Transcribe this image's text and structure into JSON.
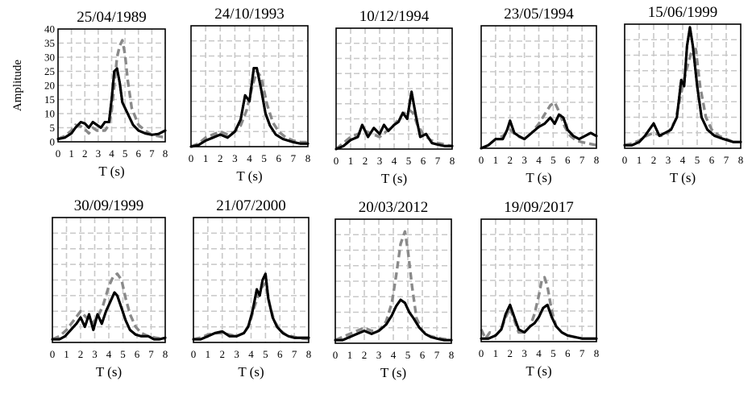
{
  "chart_data": [
    {
      "type": "line",
      "title": "25/04/1989",
      "xlabel": "T (s)",
      "ylabel": "Amplitude",
      "xlim": [
        0,
        8
      ],
      "ylim": [
        0,
        40
      ],
      "x_ticks": [
        "0",
        "1",
        "2",
        "3",
        "4",
        "5",
        "6",
        "7",
        "8"
      ],
      "y_ticks": [
        "0",
        "5",
        "10",
        "15",
        "20",
        "25",
        "30",
        "35",
        "40"
      ],
      "grid": true,
      "series": [
        {
          "style": "solid-black",
          "x": [
            0,
            0.5,
            1,
            1.3,
            1.7,
            2,
            2.3,
            2.6,
            2.9,
            3.2,
            3.5,
            3.8,
            4.0,
            4.2,
            4.4,
            4.6,
            4.8,
            5.0,
            5.3,
            5.6,
            6.0,
            6.5,
            7.0,
            7.5,
            8.0
          ],
          "y": [
            1,
            1.5,
            3,
            5,
            7,
            6.5,
            5,
            7,
            6,
            5,
            7,
            7,
            15,
            25,
            26,
            21,
            14,
            12,
            9,
            6,
            4,
            3,
            2.5,
            2.8,
            4
          ]
        },
        {
          "style": "dashed-gray",
          "x": [
            0,
            0.5,
            1,
            1.3,
            1.7,
            2,
            2.3,
            2.6,
            2.9,
            3.2,
            3.5,
            3.8,
            4.0,
            4.2,
            4.4,
            4.6,
            4.8,
            5.0,
            5.2,
            5.5,
            6.0,
            6.5,
            7.0,
            7.5,
            8.0
          ],
          "y": [
            1,
            2,
            4,
            6,
            5.5,
            4.5,
            3,
            5,
            4,
            4,
            4,
            6,
            11,
            20,
            30,
            34,
            36,
            31,
            22,
            12,
            6,
            4,
            2.5,
            2,
            1.5
          ]
        }
      ]
    },
    {
      "type": "line",
      "title": "24/10/1993",
      "xlabel": "T (s)",
      "xlim": [
        0,
        8
      ],
      "x_ticks": [
        "0",
        "1",
        "2",
        "3",
        "4",
        "5",
        "6",
        "7",
        "8"
      ],
      "grid": true,
      "series": [
        {
          "style": "solid-black",
          "x": [
            0,
            0.5,
            1,
            1.5,
            2,
            2.5,
            3,
            3.4,
            3.7,
            4.0,
            4.3,
            4.5,
            4.8,
            5.1,
            5.4,
            5.8,
            6.3,
            7.0,
            7.5,
            8.0
          ],
          "y": [
            0,
            0.5,
            2,
            3,
            4,
            3,
            5,
            9,
            17,
            15,
            26,
            26,
            19,
            11,
            7,
            4,
            2.5,
            1.5,
            1,
            1
          ]
        },
        {
          "style": "dashed-gray",
          "x": [
            0,
            0.5,
            1,
            1.5,
            2,
            2.5,
            3,
            3.4,
            3.8,
            4.2,
            4.5,
            4.8,
            5.2,
            5.6,
            6.0,
            6.5,
            7.0,
            7.5,
            8.0
          ],
          "y": [
            0,
            1,
            3,
            4,
            5,
            4,
            5,
            7,
            12,
            20,
            25,
            23,
            14,
            8,
            5,
            3,
            2,
            1.5,
            1.5
          ]
        }
      ]
    },
    {
      "type": "line",
      "title": "10/12/1994",
      "xlabel": "T (s)",
      "xlim": [
        0,
        8
      ],
      "x_ticks": [
        "0",
        "1",
        "2",
        "3",
        "4",
        "5",
        "6",
        "7",
        "8"
      ],
      "grid": true,
      "series": [
        {
          "style": "solid-black",
          "x": [
            0,
            0.5,
            1,
            1.5,
            1.8,
            2.2,
            2.6,
            3.0,
            3.3,
            3.6,
            4.0,
            4.3,
            4.6,
            4.9,
            5.2,
            5.5,
            5.8,
            6.2,
            6.6,
            7.0,
            7.5,
            8.0
          ],
          "y": [
            0,
            1,
            3,
            4,
            8,
            4,
            7,
            5,
            8,
            6,
            8,
            9,
            12,
            10,
            19,
            11,
            4,
            5,
            2,
            1.5,
            1,
            1
          ]
        },
        {
          "style": "dashed-gray",
          "x": [
            0,
            0.5,
            1,
            1.5,
            2,
            2.5,
            3,
            3.5,
            4.0,
            4.5,
            5.0,
            5.3,
            5.6,
            6.0,
            6.5,
            7.0,
            7.5,
            8.0
          ],
          "y": [
            0,
            2,
            4,
            5,
            6,
            5,
            4,
            6,
            8,
            11,
            13,
            12,
            8,
            5,
            3,
            2,
            1.5,
            1
          ]
        }
      ]
    },
    {
      "type": "line",
      "title": "23/05/1994",
      "xlabel": "T (s)",
      "xlim": [
        0,
        8
      ],
      "x_ticks": [
        "0",
        "1",
        "2",
        "3",
        "4",
        "5",
        "6",
        "7",
        "8"
      ],
      "grid": true,
      "series": [
        {
          "style": "solid-black",
          "x": [
            0,
            0.5,
            1,
            1.5,
            1.8,
            2.0,
            2.3,
            2.6,
            3.0,
            3.5,
            4.0,
            4.4,
            4.8,
            5.1,
            5.4,
            5.7,
            6.0,
            6.4,
            6.8,
            7.2,
            7.6,
            8.0
          ],
          "y": [
            0,
            1,
            3,
            3,
            6,
            9,
            5,
            4,
            3,
            5,
            7,
            8,
            10,
            8,
            11,
            10,
            6,
            4,
            3,
            4,
            5,
            4
          ]
        },
        {
          "style": "dashed-gray",
          "x": [
            0,
            0.5,
            1,
            1.5,
            2,
            2.5,
            3,
            3.5,
            4.0,
            4.4,
            4.8,
            5.1,
            5.4,
            5.8,
            6.2,
            6.6,
            7.0,
            7.5,
            8.0
          ],
          "y": [
            0,
            1,
            3,
            4,
            6,
            4,
            3,
            5,
            8,
            11,
            14,
            15,
            12,
            7,
            4,
            2.5,
            2,
            1.5,
            1
          ]
        }
      ]
    },
    {
      "type": "line",
      "title": "15/06/1999",
      "xlabel": "T (s)",
      "xlim": [
        0,
        8
      ],
      "x_ticks": [
        "0",
        "1",
        "2",
        "3",
        "4",
        "5",
        "6",
        "7",
        "8"
      ],
      "grid": true,
      "series": [
        {
          "style": "solid-black",
          "x": [
            0,
            0.5,
            1,
            1.4,
            1.7,
            2,
            2.4,
            2.8,
            3.2,
            3.6,
            3.9,
            4.1,
            4.3,
            4.5,
            4.7,
            5.0,
            5.3,
            5.7,
            6.2,
            6.8,
            7.5,
            8.0
          ],
          "y": [
            1,
            1,
            2,
            4,
            6,
            8,
            4,
            5,
            6,
            10,
            22,
            20,
            33,
            39,
            33,
            20,
            10,
            6,
            4,
            3,
            2,
            2
          ]
        },
        {
          "style": "dashed-gray",
          "x": [
            0,
            0.5,
            1,
            1.5,
            2,
            2.5,
            3,
            3.5,
            3.9,
            4.3,
            4.6,
            4.9,
            5.2,
            5.6,
            6.0,
            6.5,
            7.0,
            7.5,
            8.0
          ],
          "y": [
            1,
            1.5,
            2.5,
            4,
            5,
            4,
            5,
            9,
            18,
            26,
            31,
            32,
            20,
            10,
            6,
            4,
            3,
            2,
            2
          ]
        }
      ]
    },
    {
      "type": "line",
      "title": "30/09/1999",
      "xlabel": "T (s)",
      "xlim": [
        0,
        8
      ],
      "x_ticks": [
        "0",
        "1",
        "2",
        "3",
        "4",
        "5",
        "6",
        "7",
        "8"
      ],
      "grid": true,
      "series": [
        {
          "style": "solid-black",
          "x": [
            0,
            0.5,
            0.9,
            1.3,
            1.7,
            2.0,
            2.3,
            2.6,
            2.9,
            3.2,
            3.5,
            3.8,
            4.1,
            4.4,
            4.6,
            4.9,
            5.2,
            5.5,
            5.9,
            6.3,
            6.8,
            7.2,
            7.6,
            8.0
          ],
          "y": [
            1,
            1,
            2,
            4,
            6,
            8,
            5,
            9,
            4,
            9,
            6,
            10,
            13,
            16,
            15,
            11,
            7,
            4,
            2.5,
            2,
            2,
            1,
            1,
            1.5
          ]
        },
        {
          "style": "dashed-gray",
          "x": [
            0,
            0.5,
            1,
            1.5,
            2,
            2.4,
            2.8,
            3.2,
            3.6,
            4.0,
            4.3,
            4.6,
            4.9,
            5.2,
            5.5,
            5.9,
            6.3,
            6.8,
            7.3,
            8.0
          ],
          "y": [
            1,
            2,
            4,
            7,
            10,
            8,
            6,
            8,
            12,
            18,
            21,
            22,
            20,
            14,
            9,
            5,
            3,
            2,
            1.5,
            1
          ]
        }
      ]
    },
    {
      "type": "line",
      "title": "21/07/2000",
      "xlabel": "T (s)",
      "xlim": [
        0,
        8
      ],
      "x_ticks": [
        "0",
        "1",
        "2",
        "3",
        "4",
        "5",
        "6",
        "7",
        "8"
      ],
      "grid": true,
      "series": [
        {
          "style": "solid-black",
          "x": [
            0,
            0.5,
            1,
            1.5,
            2,
            2.5,
            3,
            3.5,
            3.8,
            4.1,
            4.4,
            4.6,
            4.8,
            5.0,
            5.2,
            5.5,
            5.8,
            6.2,
            6.6,
            7.0,
            7.5,
            8.0
          ],
          "y": [
            1,
            1,
            2,
            3,
            3.5,
            2,
            2,
            3,
            5,
            10,
            17,
            15,
            20,
            22,
            14,
            8,
            5,
            3,
            2,
            1.5,
            1.5,
            1.5
          ]
        },
        {
          "style": "dashed-gray",
          "x": [
            0,
            0.5,
            1,
            1.5,
            2,
            2.5,
            3,
            3.5,
            3.9,
            4.2,
            4.5,
            4.8,
            5.0,
            5.3,
            5.6,
            6.0,
            6.4,
            6.8,
            7.2,
            8.0
          ],
          "y": [
            1,
            1.5,
            2.5,
            3,
            3,
            2.5,
            2,
            3,
            6,
            11,
            15,
            18,
            19,
            12,
            7,
            4,
            2.5,
            2,
            1.5,
            1
          ]
        }
      ]
    },
    {
      "type": "line",
      "title": "20/03/2012",
      "xlabel": "T (s)",
      "xlim": [
        0,
        8
      ],
      "x_ticks": [
        "0",
        "1",
        "2",
        "3",
        "4",
        "5",
        "6",
        "7",
        "8"
      ],
      "grid": true,
      "series": [
        {
          "style": "solid-black",
          "x": [
            0,
            0.5,
            1,
            1.5,
            2,
            2.5,
            3,
            3.5,
            3.9,
            4.2,
            4.5,
            4.8,
            5.1,
            5.4,
            5.8,
            6.2,
            6.6,
            7.0,
            7.5,
            8.0
          ],
          "y": [
            1,
            1,
            2,
            3,
            4,
            3,
            4,
            6,
            9,
            12,
            14,
            13,
            10,
            8,
            5,
            3,
            2,
            1.5,
            1,
            1
          ]
        },
        {
          "style": "dashed-gray",
          "x": [
            0,
            0.5,
            1,
            1.5,
            2,
            2.5,
            3,
            3.5,
            3.9,
            4.2,
            4.5,
            4.8,
            5.0,
            5.3,
            5.6,
            6.0,
            6.4,
            6.8,
            7.3,
            8.0
          ],
          "y": [
            1,
            2,
            3,
            4,
            5,
            4,
            4,
            7,
            13,
            22,
            32,
            36,
            30,
            18,
            8,
            4,
            2.5,
            2,
            1.5,
            1
          ]
        }
      ]
    },
    {
      "type": "line",
      "title": "19/09/2017",
      "xlabel": "T (s)",
      "xlim": [
        0,
        8
      ],
      "x_ticks": [
        "0",
        "1",
        "2",
        "3",
        "4",
        "5",
        "6",
        "7",
        "8"
      ],
      "grid": true,
      "series": [
        {
          "style": "solid-black",
          "x": [
            0,
            0.5,
            1,
            1.4,
            1.7,
            2.0,
            2.3,
            2.6,
            3.0,
            3.4,
            3.7,
            4.0,
            4.3,
            4.6,
            4.9,
            5.2,
            5.6,
            6.0,
            6.5,
            7.0,
            7.5,
            8.0
          ],
          "y": [
            1,
            1,
            2,
            4,
            9,
            12,
            8,
            4,
            3,
            5,
            6,
            8,
            11,
            12,
            8,
            5,
            3,
            2,
            1.5,
            1,
            1,
            1
          ]
        },
        {
          "style": "dashed-gray",
          "x": [
            0,
            0.3,
            0.6,
            1,
            1.4,
            1.7,
            2.0,
            2.3,
            2.6,
            3.0,
            3.4,
            3.7,
            4.0,
            4.2,
            4.4,
            4.6,
            4.9,
            5.2,
            5.6,
            6.0,
            6.5,
            7.0,
            7.5,
            8.0
          ],
          "y": [
            4,
            1,
            3,
            2,
            4,
            8,
            11,
            7,
            3,
            3,
            5,
            9,
            15,
            20,
            21,
            18,
            10,
            5,
            3,
            2,
            1.5,
            1,
            1,
            1
          ]
        }
      ]
    }
  ]
}
